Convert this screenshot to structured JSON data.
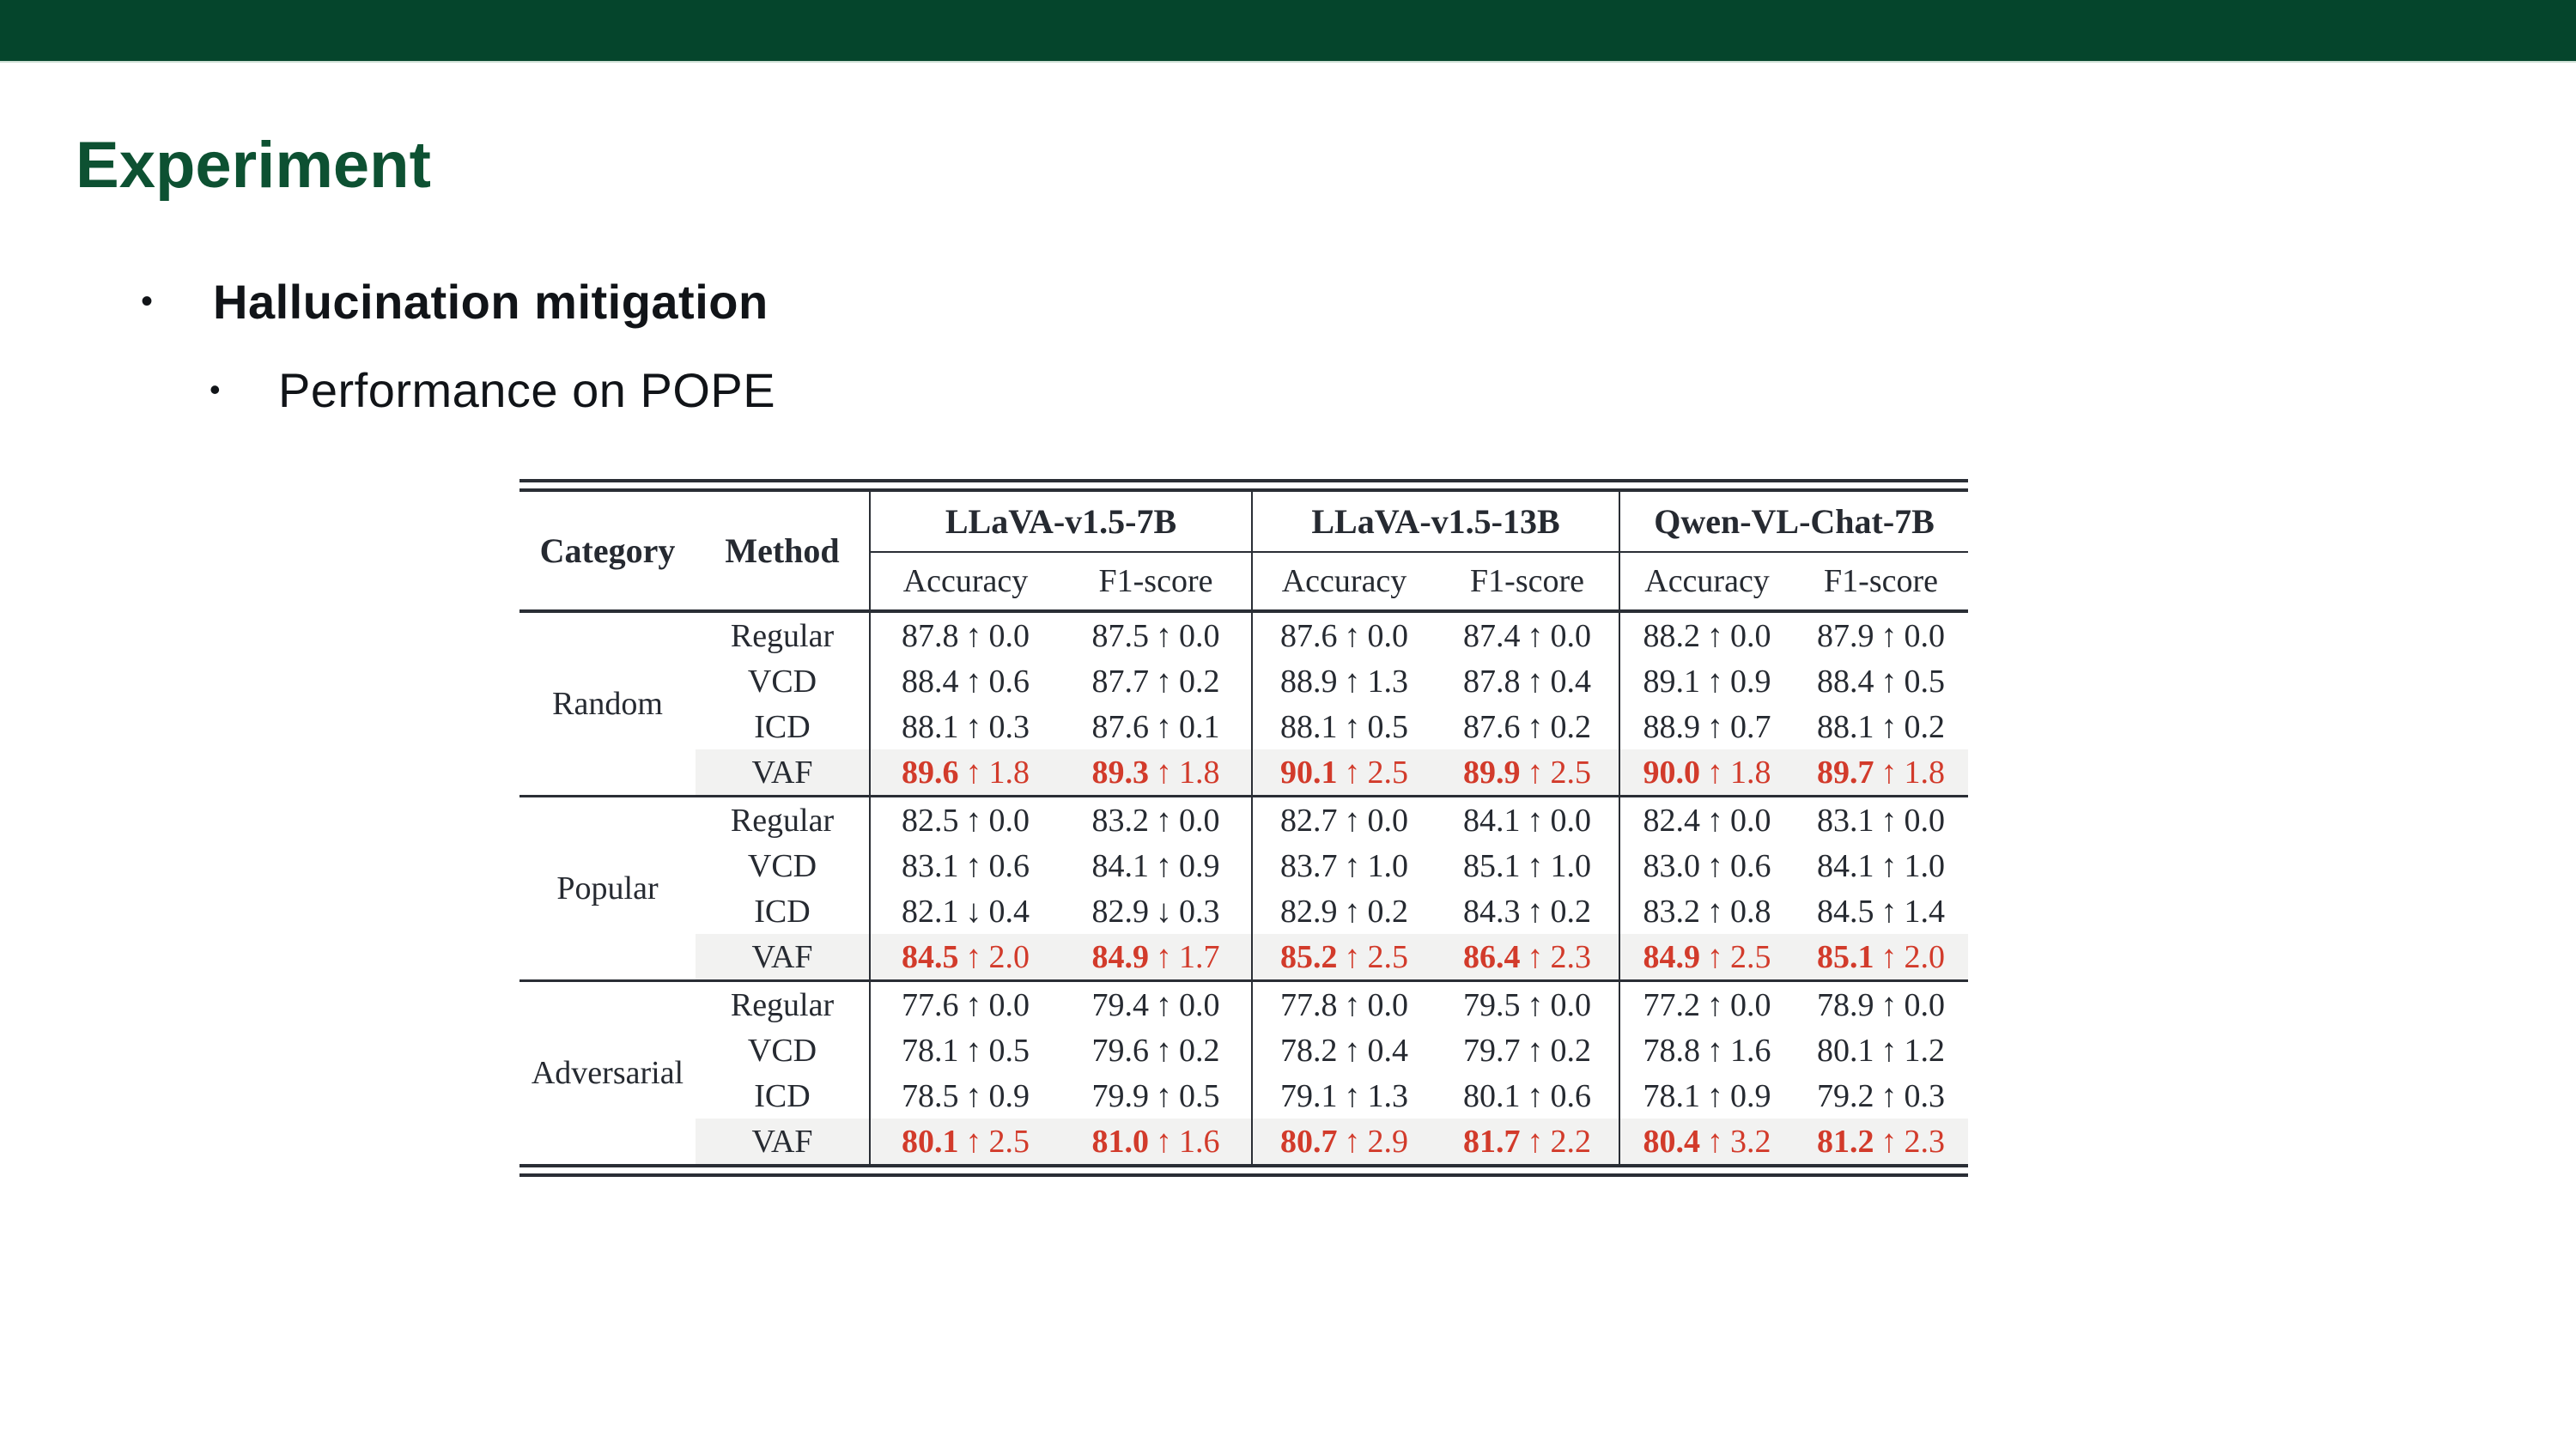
{
  "slide": {
    "title": "Experiment",
    "bullet_glyph": "•",
    "bullets": [
      {
        "level": 1,
        "text": "Hallucination mitigation"
      },
      {
        "level": 2,
        "text": "Performance on POPE"
      }
    ]
  },
  "colors": {
    "header_bar_green": "#05452c",
    "title_green": "#0d5132",
    "table_text": "#262a31",
    "highlight_red": "#d23b2b",
    "highlight_row_bg": "#f2f2f1",
    "rule": "#2a2e35"
  },
  "table": {
    "headers": {
      "category": "Category",
      "method": "Method",
      "accuracy": "Accuracy",
      "f1": "F1-score"
    },
    "model_groups": [
      "LLaVA-v1.5-7B",
      "LLaVA-v1.5-13B",
      "Qwen-VL-Chat-7B"
    ],
    "arrow_glyphs": {
      "up": "↑",
      "down": "↓"
    },
    "blocks": [
      {
        "category": "Random",
        "rows": [
          {
            "method": "Regular",
            "highlight": false,
            "cells": [
              {
                "score": "87.8",
                "dir": "up",
                "delta": "0.0"
              },
              {
                "score": "87.5",
                "dir": "up",
                "delta": "0.0"
              },
              {
                "score": "87.6",
                "dir": "up",
                "delta": "0.0"
              },
              {
                "score": "87.4",
                "dir": "up",
                "delta": "0.0"
              },
              {
                "score": "88.2",
                "dir": "up",
                "delta": "0.0"
              },
              {
                "score": "87.9",
                "dir": "up",
                "delta": "0.0"
              }
            ]
          },
          {
            "method": "VCD",
            "highlight": false,
            "cells": [
              {
                "score": "88.4",
                "dir": "up",
                "delta": "0.6"
              },
              {
                "score": "87.7",
                "dir": "up",
                "delta": "0.2"
              },
              {
                "score": "88.9",
                "dir": "up",
                "delta": "1.3"
              },
              {
                "score": "87.8",
                "dir": "up",
                "delta": "0.4"
              },
              {
                "score": "89.1",
                "dir": "up",
                "delta": "0.9"
              },
              {
                "score": "88.4",
                "dir": "up",
                "delta": "0.5"
              }
            ]
          },
          {
            "method": "ICD",
            "highlight": false,
            "cells": [
              {
                "score": "88.1",
                "dir": "up",
                "delta": "0.3"
              },
              {
                "score": "87.6",
                "dir": "up",
                "delta": "0.1"
              },
              {
                "score": "88.1",
                "dir": "up",
                "delta": "0.5"
              },
              {
                "score": "87.6",
                "dir": "up",
                "delta": "0.2"
              },
              {
                "score": "88.9",
                "dir": "up",
                "delta": "0.7"
              },
              {
                "score": "88.1",
                "dir": "up",
                "delta": "0.2"
              }
            ]
          },
          {
            "method": "VAF",
            "highlight": true,
            "cells": [
              {
                "score": "89.6",
                "dir": "up",
                "delta": "1.8"
              },
              {
                "score": "89.3",
                "dir": "up",
                "delta": "1.8"
              },
              {
                "score": "90.1",
                "dir": "up",
                "delta": "2.5"
              },
              {
                "score": "89.9",
                "dir": "up",
                "delta": "2.5"
              },
              {
                "score": "90.0",
                "dir": "up",
                "delta": "1.8"
              },
              {
                "score": "89.7",
                "dir": "up",
                "delta": "1.8"
              }
            ]
          }
        ]
      },
      {
        "category": "Popular",
        "rows": [
          {
            "method": "Regular",
            "highlight": false,
            "cells": [
              {
                "score": "82.5",
                "dir": "up",
                "delta": "0.0"
              },
              {
                "score": "83.2",
                "dir": "up",
                "delta": "0.0"
              },
              {
                "score": "82.7",
                "dir": "up",
                "delta": "0.0"
              },
              {
                "score": "84.1",
                "dir": "up",
                "delta": "0.0"
              },
              {
                "score": "82.4",
                "dir": "up",
                "delta": "0.0"
              },
              {
                "score": "83.1",
                "dir": "up",
                "delta": "0.0"
              }
            ]
          },
          {
            "method": "VCD",
            "highlight": false,
            "cells": [
              {
                "score": "83.1",
                "dir": "up",
                "delta": "0.6"
              },
              {
                "score": "84.1",
                "dir": "up",
                "delta": "0.9"
              },
              {
                "score": "83.7",
                "dir": "up",
                "delta": "1.0"
              },
              {
                "score": "85.1",
                "dir": "up",
                "delta": "1.0"
              },
              {
                "score": "83.0",
                "dir": "up",
                "delta": "0.6"
              },
              {
                "score": "84.1",
                "dir": "up",
                "delta": "1.0"
              }
            ]
          },
          {
            "method": "ICD",
            "highlight": false,
            "cells": [
              {
                "score": "82.1",
                "dir": "down",
                "delta": "0.4"
              },
              {
                "score": "82.9",
                "dir": "down",
                "delta": "0.3"
              },
              {
                "score": "82.9",
                "dir": "up",
                "delta": "0.2"
              },
              {
                "score": "84.3",
                "dir": "up",
                "delta": "0.2"
              },
              {
                "score": "83.2",
                "dir": "up",
                "delta": "0.8"
              },
              {
                "score": "84.5",
                "dir": "up",
                "delta": "1.4"
              }
            ]
          },
          {
            "method": "VAF",
            "highlight": true,
            "cells": [
              {
                "score": "84.5",
                "dir": "up",
                "delta": "2.0"
              },
              {
                "score": "84.9",
                "dir": "up",
                "delta": "1.7"
              },
              {
                "score": "85.2",
                "dir": "up",
                "delta": "2.5"
              },
              {
                "score": "86.4",
                "dir": "up",
                "delta": "2.3"
              },
              {
                "score": "84.9",
                "dir": "up",
                "delta": "2.5"
              },
              {
                "score": "85.1",
                "dir": "up",
                "delta": "2.0"
              }
            ]
          }
        ]
      },
      {
        "category": "Adversarial",
        "rows": [
          {
            "method": "Regular",
            "highlight": false,
            "cells": [
              {
                "score": "77.6",
                "dir": "up",
                "delta": "0.0"
              },
              {
                "score": "79.4",
                "dir": "up",
                "delta": "0.0"
              },
              {
                "score": "77.8",
                "dir": "up",
                "delta": "0.0"
              },
              {
                "score": "79.5",
                "dir": "up",
                "delta": "0.0"
              },
              {
                "score": "77.2",
                "dir": "up",
                "delta": "0.0"
              },
              {
                "score": "78.9",
                "dir": "up",
                "delta": "0.0"
              }
            ]
          },
          {
            "method": "VCD",
            "highlight": false,
            "cells": [
              {
                "score": "78.1",
                "dir": "up",
                "delta": "0.5"
              },
              {
                "score": "79.6",
                "dir": "up",
                "delta": "0.2"
              },
              {
                "score": "78.2",
                "dir": "up",
                "delta": "0.4"
              },
              {
                "score": "79.7",
                "dir": "up",
                "delta": "0.2"
              },
              {
                "score": "78.8",
                "dir": "up",
                "delta": "1.6"
              },
              {
                "score": "80.1",
                "dir": "up",
                "delta": "1.2"
              }
            ]
          },
          {
            "method": "ICD",
            "highlight": false,
            "cells": [
              {
                "score": "78.5",
                "dir": "up",
                "delta": "0.9"
              },
              {
                "score": "79.9",
                "dir": "up",
                "delta": "0.5"
              },
              {
                "score": "79.1",
                "dir": "up",
                "delta": "1.3"
              },
              {
                "score": "80.1",
                "dir": "up",
                "delta": "0.6"
              },
              {
                "score": "78.1",
                "dir": "up",
                "delta": "0.9"
              },
              {
                "score": "79.2",
                "dir": "up",
                "delta": "0.3"
              }
            ]
          },
          {
            "method": "VAF",
            "highlight": true,
            "cells": [
              {
                "score": "80.1",
                "dir": "up",
                "delta": "2.5"
              },
              {
                "score": "81.0",
                "dir": "up",
                "delta": "1.6"
              },
              {
                "score": "80.7",
                "dir": "up",
                "delta": "2.9"
              },
              {
                "score": "81.7",
                "dir": "up",
                "delta": "2.2"
              },
              {
                "score": "80.4",
                "dir": "up",
                "delta": "3.2"
              },
              {
                "score": "81.2",
                "dir": "up",
                "delta": "2.3"
              }
            ]
          }
        ]
      }
    ]
  }
}
